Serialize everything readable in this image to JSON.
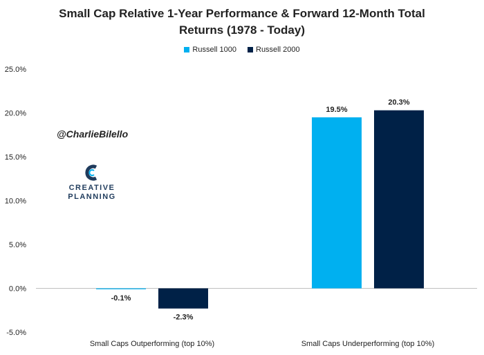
{
  "title_line1": "Small Cap Relative 1-Year Performance & Forward 12-Month Total",
  "title_line2": "Returns (1978 - Today)",
  "watermark": "@CharlieBilello",
  "logo": {
    "line1": "CREATIVE",
    "line2": "PLANNING",
    "icon": "creative-planning-c-logo"
  },
  "colors": {
    "russell1000": "#00b0f0",
    "russell2000": "#002147",
    "axis": "#bfbfbf",
    "logo": "#1f3b5c"
  },
  "chart_data": {
    "type": "bar",
    "categories": [
      "Small Caps Outperforming (top 10%)",
      "Small Caps Underperforming (top 10%)"
    ],
    "series": [
      {
        "name": "Russell 1000",
        "values": [
          -0.1,
          19.5
        ],
        "labels": [
          "-0.1%",
          "19.5%"
        ]
      },
      {
        "name": "Russell 2000",
        "values": [
          -2.3,
          20.3
        ],
        "labels": [
          "-2.3%",
          "20.3%"
        ]
      }
    ],
    "ylim": [
      -5,
      25
    ],
    "yticks": [
      25,
      20,
      15,
      10,
      5,
      0,
      -5
    ],
    "ytick_labels": [
      "25.0%",
      "20.0%",
      "15.0%",
      "10.0%",
      "5.0%",
      "0.0%",
      "-5.0%"
    ],
    "grid": false,
    "legend_position": "top"
  }
}
